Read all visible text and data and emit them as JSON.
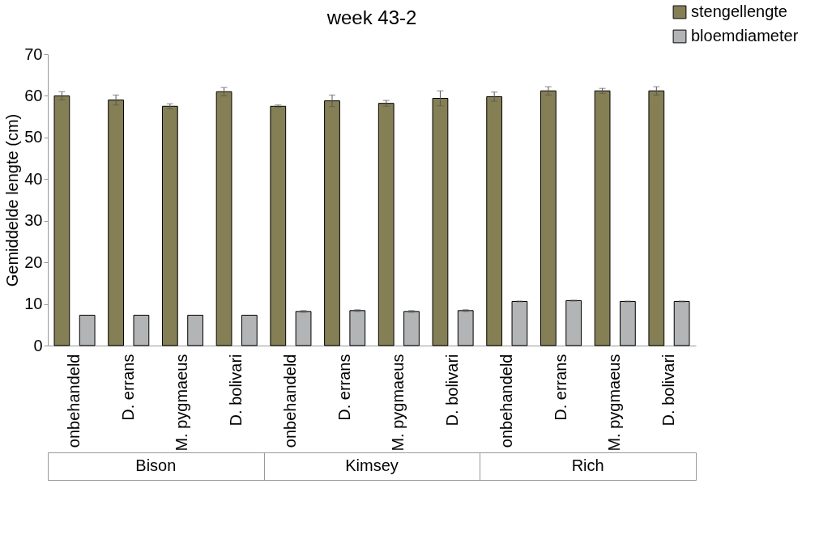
{
  "chart_data": {
    "type": "bar",
    "title": "week 43-2",
    "ylabel": "Gemiddelde lengte (cm)",
    "categories": [
      "onbehandeld",
      "D. errans",
      "M. pygmaeus",
      "D. bolivari",
      "onbehandeld",
      "D. errans",
      "M. pygmaeus",
      "D. bolivari",
      "onbehandeld",
      "D. errans",
      "M. pygmaeus",
      "D. bolivari"
    ],
    "series": [
      {
        "name": "stengellengte",
        "color": "#857f55",
        "values": [
          60,
          59,
          57.5,
          61,
          57.5,
          58.8,
          58.2,
          59.4,
          59.8,
          61.2,
          61.2,
          61.2
        ],
        "errors": [
          1.0,
          1.2,
          0.6,
          1.0,
          0.3,
          1.4,
          0.7,
          1.8,
          1.1,
          1.0,
          0.6,
          1.0
        ]
      },
      {
        "name": "bloemdiameter",
        "color": "#b2b4b5",
        "values": [
          7.3,
          7.3,
          7.3,
          7.3,
          8.2,
          8.4,
          8.2,
          8.4,
          10.6,
          10.8,
          10.6,
          10.6
        ],
        "errors": [
          null,
          null,
          null,
          null,
          0.2,
          0.2,
          0.2,
          0.2,
          0.1,
          0.1,
          0.1,
          0.1
        ]
      }
    ],
    "annotations": [
      "Bison",
      "Kimsey",
      "Rich"
    ],
    "ylim": [
      0,
      70
    ],
    "yticks": [
      0,
      10,
      20,
      30,
      40,
      50,
      60,
      70
    ],
    "grid": false,
    "legend": "top right"
  }
}
